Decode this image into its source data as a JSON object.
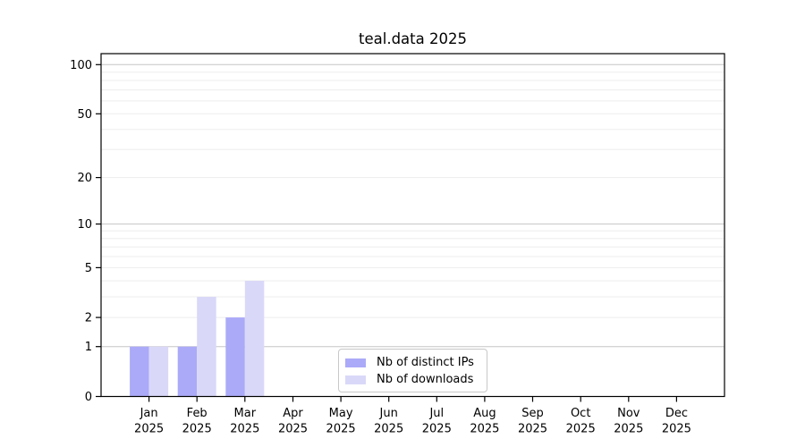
{
  "chart_data": {
    "type": "bar",
    "title": "teal.data 2025",
    "categories": [
      "Jan",
      "Feb",
      "Mar",
      "Apr",
      "May",
      "Jun",
      "Jul",
      "Aug",
      "Sep",
      "Oct",
      "Nov",
      "Dec"
    ],
    "x_year_label": "2025",
    "series": [
      {
        "name": "Nb of distinct IPs",
        "color": "#abaaf8",
        "values": [
          1,
          1,
          2,
          0,
          0,
          0,
          0,
          0,
          0,
          0,
          0,
          0
        ]
      },
      {
        "name": "Nb of downloads",
        "color": "#d9d8f8",
        "values": [
          1,
          3,
          4,
          0,
          0,
          0,
          0,
          0,
          0,
          0,
          0,
          0
        ]
      }
    ],
    "y_axis": {
      "ticks": [
        0,
        1,
        2,
        5,
        10,
        20,
        50,
        100
      ],
      "scale": "log10(1+value)",
      "range_top": 115
    },
    "grid": {
      "minor_values": [
        1,
        2,
        3,
        4,
        5,
        6,
        7,
        8,
        9,
        10,
        20,
        30,
        40,
        50,
        60,
        70,
        80,
        90,
        100
      ],
      "major_values": [
        1,
        10,
        100
      ],
      "minor_color": "#ededed",
      "major_color": "#c6c6c6"
    },
    "legend": {
      "position": "lower center",
      "entries": [
        "Nb of distinct IPs",
        "Nb of downloads"
      ]
    },
    "xlabel": "",
    "ylabel": ""
  }
}
